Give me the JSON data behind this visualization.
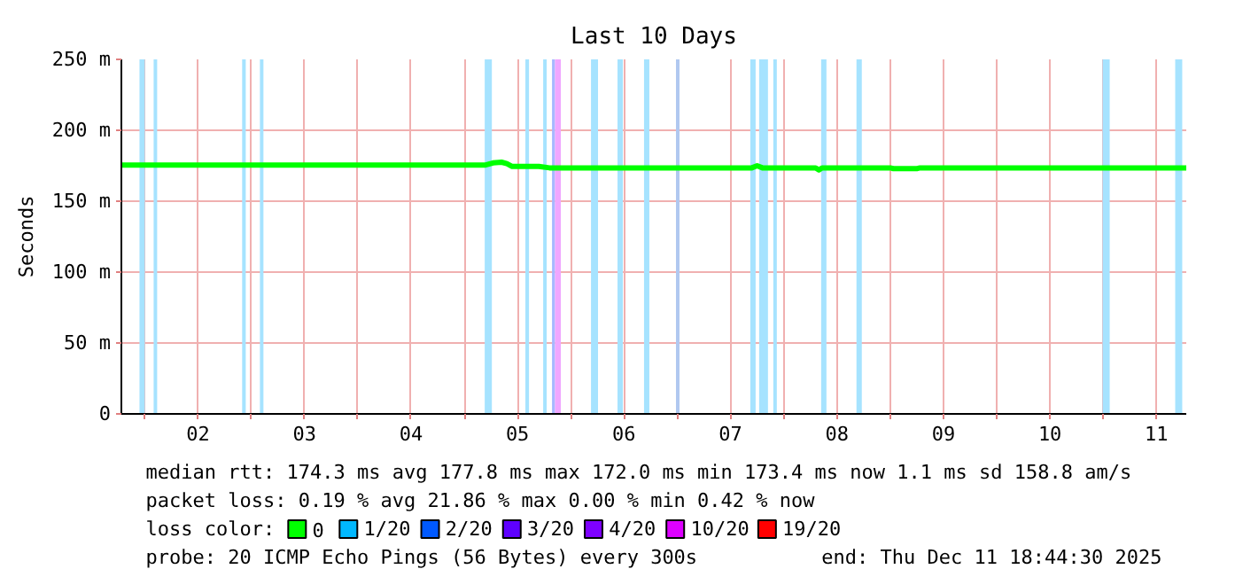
{
  "chart_data": {
    "type": "line",
    "title": "Last 10 Days",
    "ylabel": "Seconds",
    "x": [
      1.78,
      5.2,
      5.27,
      5.35,
      5.4,
      5.45,
      5.7,
      5.8,
      7.7,
      7.75,
      7.8,
      8.3,
      8.33,
      8.36,
      9.0,
      9.03,
      9.25,
      9.28,
      11.78
    ],
    "series": [
      {
        "name": "0",
        "color": "#00ff00",
        "values": [
          175.5,
          175.5,
          177,
          177.5,
          176.5,
          174.5,
          174.5,
          173.5,
          173.5,
          175,
          173.5,
          173.5,
          172,
          173.5,
          173.5,
          173,
          173,
          173.5,
          173.5
        ]
      },
      {
        "name": "1/20",
        "color": "#00b8ff",
        "values": [
          null,
          null,
          null,
          null,
          null,
          null,
          null,
          null,
          null,
          null,
          null,
          null,
          null,
          null,
          null,
          null,
          null,
          null,
          null
        ]
      },
      {
        "name": "2/20",
        "color": "#0059ff",
        "values": [
          null,
          null,
          null,
          null,
          null,
          null,
          null,
          null,
          null,
          null,
          null,
          null,
          null,
          null,
          null,
          null,
          null,
          null,
          null
        ]
      },
      {
        "name": "3/20",
        "color": "#5e00ff",
        "values": [
          null,
          null,
          null,
          null,
          null,
          null,
          null,
          null,
          null,
          null,
          null,
          null,
          null,
          null,
          null,
          null,
          null,
          null,
          null
        ]
      },
      {
        "name": "4/20",
        "color": "#7e00ff",
        "values": [
          null,
          null,
          null,
          null,
          null,
          null,
          null,
          null,
          null,
          null,
          null,
          null,
          null,
          null,
          null,
          null,
          null,
          null,
          null
        ]
      },
      {
        "name": "10/20",
        "color": "#dd00ff",
        "values": [
          null,
          null,
          null,
          null,
          null,
          null,
          null,
          null,
          null,
          null,
          null,
          null,
          null,
          null,
          null,
          null,
          null,
          null,
          null
        ]
      },
      {
        "name": "19/20",
        "color": "#ff0000",
        "values": [
          null,
          null,
          null,
          null,
          null,
          null,
          null,
          null,
          null,
          null,
          null,
          null,
          null,
          null,
          null,
          null,
          null,
          null,
          null
        ]
      }
    ],
    "legend_title": "loss color:",
    "legend": "bottom",
    "grid": true,
    "xlim": [
      1.78,
      11.78
    ],
    "ylim": [
      0,
      250
    ],
    "xticks": [
      {
        "value": 2,
        "label": null
      },
      {
        "value": 2.5,
        "label": "02"
      },
      {
        "value": 3,
        "label": null
      },
      {
        "value": 3.5,
        "label": "03"
      },
      {
        "value": 4,
        "label": null
      },
      {
        "value": 4.5,
        "label": "04"
      },
      {
        "value": 5,
        "label": null
      },
      {
        "value": 5.5,
        "label": "05"
      },
      {
        "value": 6,
        "label": null
      },
      {
        "value": 6.5,
        "label": "06"
      },
      {
        "value": 7,
        "label": null
      },
      {
        "value": 7.5,
        "label": "07"
      },
      {
        "value": 8,
        "label": null
      },
      {
        "value": 8.5,
        "label": "08"
      },
      {
        "value": 9,
        "label": null
      },
      {
        "value": 9.5,
        "label": "09"
      },
      {
        "value": 10,
        "label": null
      },
      {
        "value": 10.5,
        "label": "10"
      },
      {
        "value": 11,
        "label": null
      },
      {
        "value": 11.5,
        "label": "11"
      }
    ],
    "yticks": [
      0,
      {
        "value": 50,
        "label": "50 m"
      },
      {
        "value": 100,
        "label": "100 m"
      },
      {
        "value": 150,
        "label": "150 m"
      },
      {
        "value": 200,
        "label": "200 m"
      },
      {
        "value": 250,
        "label": "250 m"
      }
    ],
    "bands": [
      {
        "axis": "x",
        "from": 1.95,
        "to": 2.0,
        "color": "#a6e3ff"
      },
      {
        "axis": "x",
        "from": 2.083,
        "to": 2.116,
        "color": "#a6e3ff"
      },
      {
        "axis": "x",
        "from": 2.914,
        "to": 2.948,
        "color": "#a6e3ff"
      },
      {
        "axis": "x",
        "from": 3.081,
        "to": 3.114,
        "color": "#a6e3ff"
      },
      {
        "axis": "x",
        "from": 5.192,
        "to": 5.259,
        "color": "#a6e3ff"
      },
      {
        "axis": "x",
        "from": 5.574,
        "to": 5.608,
        "color": "#a6e3ff"
      },
      {
        "axis": "x",
        "from": 5.741,
        "to": 5.774,
        "color": "#a6e3ff"
      },
      {
        "axis": "x",
        "from": 5.824,
        "to": 5.852,
        "color": "#a6b8ff"
      },
      {
        "axis": "x",
        "from": 5.852,
        "to": 5.907,
        "color": "#f0a6ff"
      },
      {
        "axis": "x",
        "from": 6.19,
        "to": 6.256,
        "color": "#a6e3ff"
      },
      {
        "axis": "x",
        "from": 6.439,
        "to": 6.489,
        "color": "#a6e3ff"
      },
      {
        "axis": "x",
        "from": 6.688,
        "to": 6.738,
        "color": "#a6e3ff"
      },
      {
        "axis": "x",
        "from": 6.988,
        "to": 7.021,
        "color": "#b0c8f0"
      },
      {
        "axis": "x",
        "from": 7.686,
        "to": 7.736,
        "color": "#a6e3ff"
      },
      {
        "axis": "x",
        "from": 7.769,
        "to": 7.852,
        "color": "#a6e3ff"
      },
      {
        "axis": "x",
        "from": 7.902,
        "to": 7.935,
        "color": "#a6e3ff"
      },
      {
        "axis": "x",
        "from": 8.351,
        "to": 8.401,
        "color": "#a6e3ff"
      },
      {
        "axis": "x",
        "from": 8.683,
        "to": 8.733,
        "color": "#a6e3ff"
      },
      {
        "axis": "x",
        "from": 10.994,
        "to": 11.061,
        "color": "#a6e3ff"
      },
      {
        "axis": "x",
        "from": 11.676,
        "to": 11.742,
        "color": "#a6e3ff"
      }
    ],
    "annotations": [
      "median rtt:  174.3 ms avg  177.8 ms max  172.0 ms min  173.4 ms now  1.1 ms sd  158.8   am/s",
      "packet loss: 0.19 % avg  21.86 % max  0.00 % min  0.42 % now",
      "probe:       20 ICMP Echo Pings (56 Bytes) every 300s",
      "end: Thu Dec 11 18:44:30 2025"
    ]
  }
}
